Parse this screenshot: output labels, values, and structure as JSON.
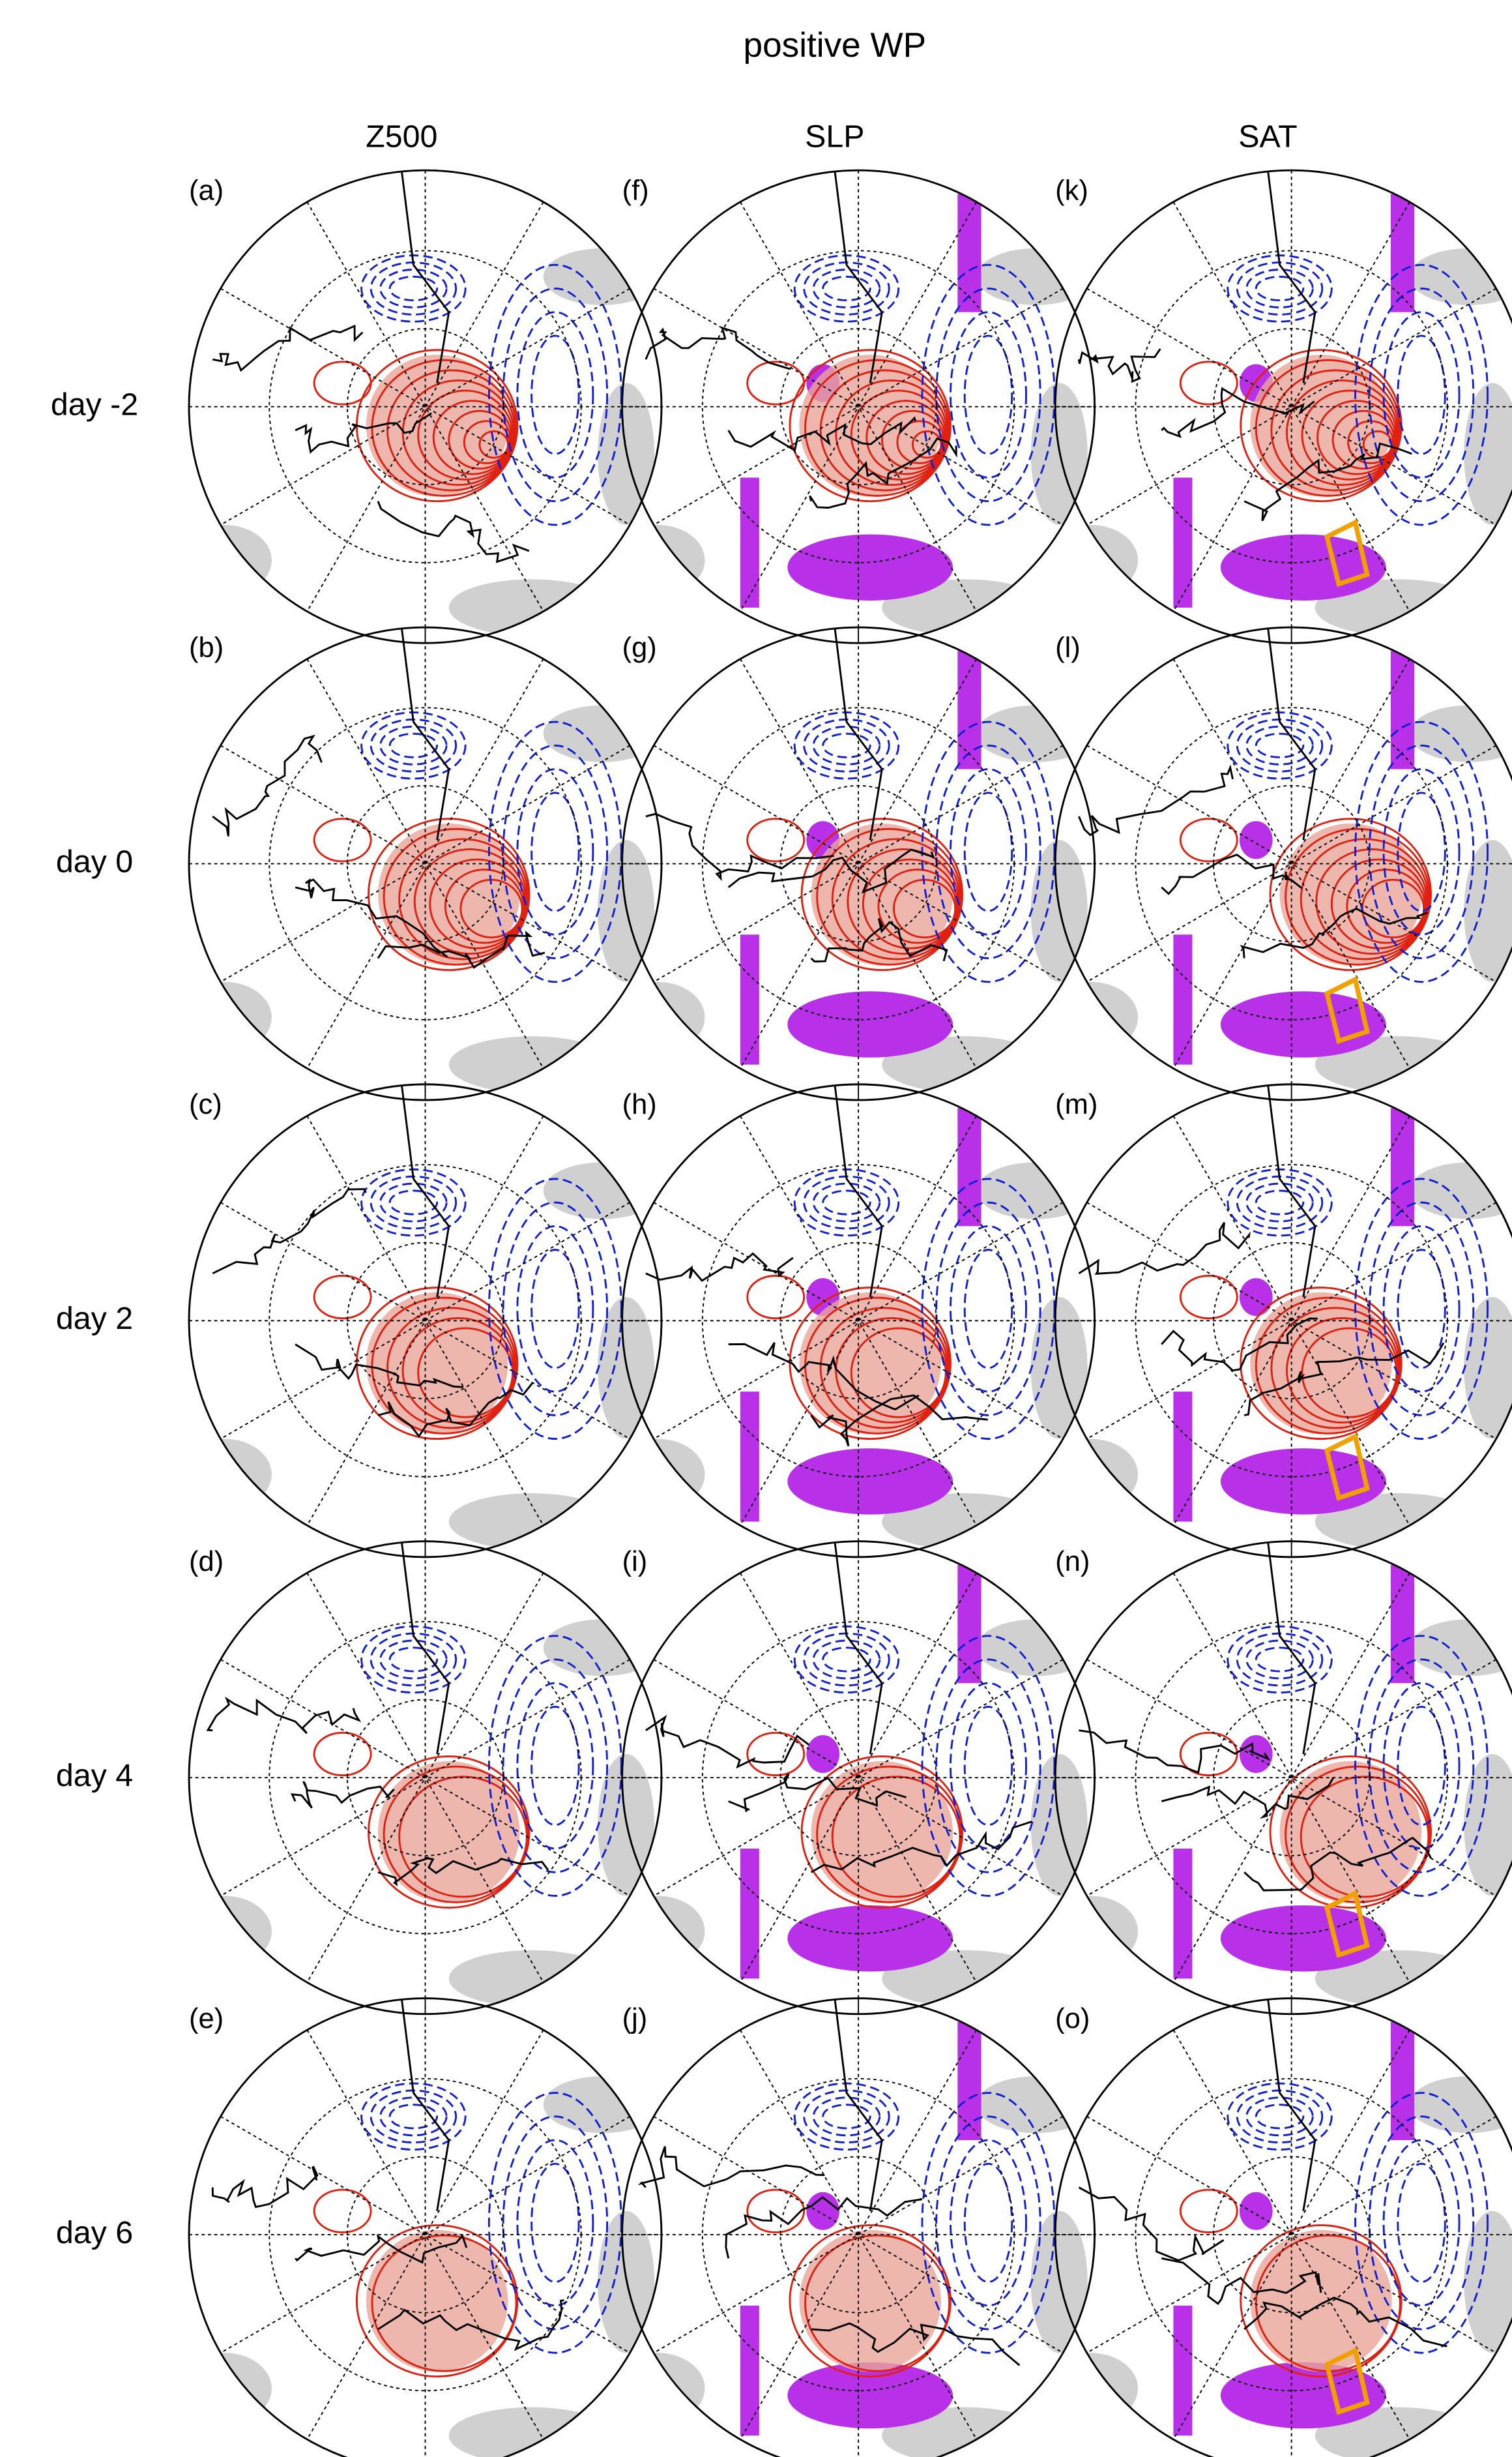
{
  "title": "positive WP",
  "rows": [
    "day -2",
    "day 0",
    "day 2",
    "day 4",
    "day 6"
  ],
  "columns": [
    {
      "title": "Z500",
      "panels": [
        "(a)",
        "(b)",
        "(c)",
        "(d)",
        "(e)"
      ]
    },
    {
      "title": "SLP",
      "panels": [
        "(f)",
        "(g)",
        "(h)",
        "(i)",
        "(j)"
      ]
    },
    {
      "title": "SAT",
      "panels": [
        "(k)",
        "(l)",
        "(m)",
        "(n)",
        "(o)"
      ]
    }
  ]
}
